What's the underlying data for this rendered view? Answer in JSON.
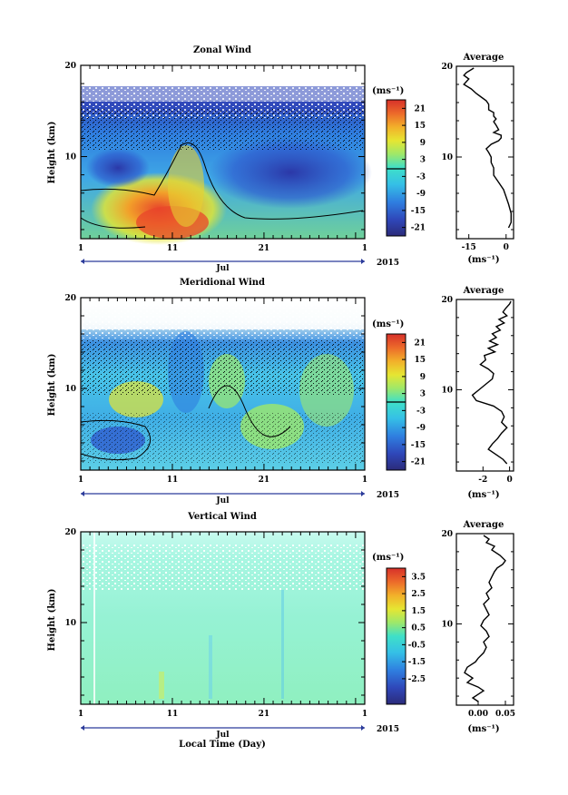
{
  "figure": {
    "xlabel": "Local Time (Day)",
    "month": "Jul",
    "year": "2015"
  },
  "chart_data": [
    {
      "type": "heatmap",
      "title": "Zonal Wind",
      "ylabel": "Height (km)",
      "ylim": [
        1,
        20
      ],
      "yticks": [
        "20",
        "10"
      ],
      "xticks": [
        "1",
        "11",
        "21",
        "1"
      ],
      "xlim_days": [
        1,
        32
      ],
      "colorbar_unit": "(ms⁻¹)",
      "colorbar_ticks": [
        "21",
        "15",
        "9",
        "3",
        "-3",
        "-9",
        "-15",
        "-21"
      ],
      "colorbar_range": [
        -24,
        24
      ],
      "contour_level": 0,
      "description_values": {
        "low_altitude_peak_ms": 21,
        "upper_core_ms": -21
      }
    },
    {
      "type": "line",
      "title": "Average",
      "xlabel": "(ms⁻¹)",
      "xticks": [
        "-15",
        "0"
      ],
      "xlim": [
        -20,
        3
      ],
      "yticks": [
        "20",
        "10"
      ],
      "ylim": [
        1,
        20
      ],
      "series": [
        {
          "x": [
            -13,
            -16,
            -17,
            -15,
            -17,
            -14,
            -12,
            -10,
            -8,
            -7,
            -7,
            -5,
            -5,
            -4,
            -5,
            -4,
            -3,
            -5,
            -2,
            -2,
            -3,
            -6,
            -8,
            -7,
            -6,
            -6,
            -5,
            -5,
            -3,
            -1,
            0,
            1,
            2,
            2,
            1
          ],
          "y": [
            19.8,
            19.3,
            19.0,
            18.6,
            18.0,
            17.5,
            17.0,
            16.6,
            16.2,
            15.8,
            15.2,
            14.9,
            14.5,
            14.2,
            13.9,
            13.5,
            13.0,
            12.7,
            12.4,
            12.1,
            11.8,
            11.4,
            10.9,
            10.5,
            10.0,
            9.4,
            8.8,
            8.0,
            7.2,
            6.4,
            5.6,
            4.8,
            3.8,
            2.8,
            2.2
          ]
        }
      ]
    },
    {
      "type": "heatmap",
      "title": "Meridional Wind",
      "ylabel": "Height (km)",
      "ylim": [
        1,
        20
      ],
      "yticks": [
        "20",
        "10"
      ],
      "xticks": [
        "1",
        "11",
        "21",
        "1"
      ],
      "xlim_days": [
        1,
        32
      ],
      "colorbar_unit": "(ms⁻¹)",
      "colorbar_ticks": [
        "21",
        "15",
        "9",
        "3",
        "-3",
        "-9",
        "-15",
        "-21"
      ],
      "colorbar_range": [
        -24,
        24
      ],
      "contour_level": 0
    },
    {
      "type": "line",
      "title": "Average",
      "xlabel": "(ms⁻¹)",
      "xticks": [
        "-2",
        "0"
      ],
      "xlim": [
        -4,
        0.3
      ],
      "yticks": [
        "20",
        "10"
      ],
      "ylim": [
        1,
        20
      ],
      "series": [
        {
          "x": [
            0.1,
            0.0,
            -0.3,
            -0.5,
            -0.2,
            -0.8,
            -0.4,
            -1.0,
            -0.7,
            -1.3,
            -1.0,
            -1.5,
            -0.9,
            -1.6,
            -1.1,
            -1.9,
            -1.8,
            -2.2,
            -1.6,
            -1.2,
            -1.3,
            -1.8,
            -2.3,
            -2.8,
            -2.5,
            -1.2,
            -0.6,
            -0.4,
            -0.6,
            -0.2,
            -0.6,
            -0.9,
            -1.3,
            -1.6,
            -1.0,
            -0.5,
            -0.2
          ],
          "y": [
            19.8,
            19.5,
            19.0,
            18.6,
            18.2,
            17.8,
            17.4,
            17.0,
            16.6,
            16.2,
            15.8,
            15.4,
            15.0,
            14.6,
            14.2,
            13.8,
            13.3,
            12.8,
            12.3,
            11.8,
            11.2,
            10.6,
            10.0,
            9.4,
            8.8,
            8.2,
            7.6,
            7.0,
            6.4,
            5.8,
            5.2,
            4.6,
            4.0,
            3.4,
            2.8,
            2.3,
            1.8
          ]
        }
      ]
    },
    {
      "type": "heatmap",
      "title": "Vertical Wind",
      "ylabel": "Height (km)",
      "ylim": [
        1,
        20
      ],
      "yticks": [
        "20",
        "10"
      ],
      "xticks": [
        "1",
        "11",
        "21",
        "1"
      ],
      "xlim_days": [
        1,
        32
      ],
      "colorbar_unit": "(ms⁻¹)",
      "colorbar_ticks": [
        "3.5",
        "2.5",
        "1.5",
        "0.5",
        "-0.5",
        "-1.5",
        "-2.5"
      ],
      "colorbar_range": [
        -4,
        4
      ]
    },
    {
      "type": "line",
      "title": "Average",
      "xlabel": "(ms⁻¹)",
      "xticks": [
        "0.00",
        "0.05"
      ],
      "xlim": [
        -0.04,
        0.065
      ],
      "yticks": [
        "20",
        "10"
      ],
      "ylim": [
        1,
        20
      ],
      "series": [
        {
          "x": [
            0.01,
            0.02,
            0.015,
            0.03,
            0.025,
            0.04,
            0.05,
            0.045,
            0.035,
            0.03,
            0.025,
            0.02,
            0.025,
            0.015,
            0.02,
            0.01,
            0.015,
            0.02,
            0.01,
            0.005,
            0.015,
            0.02,
            0.01,
            0.015,
            0.01,
            0.0,
            -0.005,
            -0.02,
            -0.025,
            -0.01,
            -0.02,
            0.0,
            0.01,
            0.0,
            -0.01,
            0.0
          ],
          "y": [
            19.8,
            19.4,
            19.0,
            18.6,
            18.2,
            17.6,
            17.0,
            16.6,
            16.2,
            15.8,
            15.2,
            14.6,
            14.0,
            13.4,
            12.8,
            12.2,
            11.6,
            11.0,
            10.4,
            9.8,
            9.2,
            8.6,
            8.0,
            7.4,
            6.8,
            6.2,
            5.8,
            5.2,
            4.6,
            4.0,
            3.5,
            3.0,
            2.6,
            2.2,
            1.8,
            1.4
          ]
        }
      ]
    }
  ]
}
